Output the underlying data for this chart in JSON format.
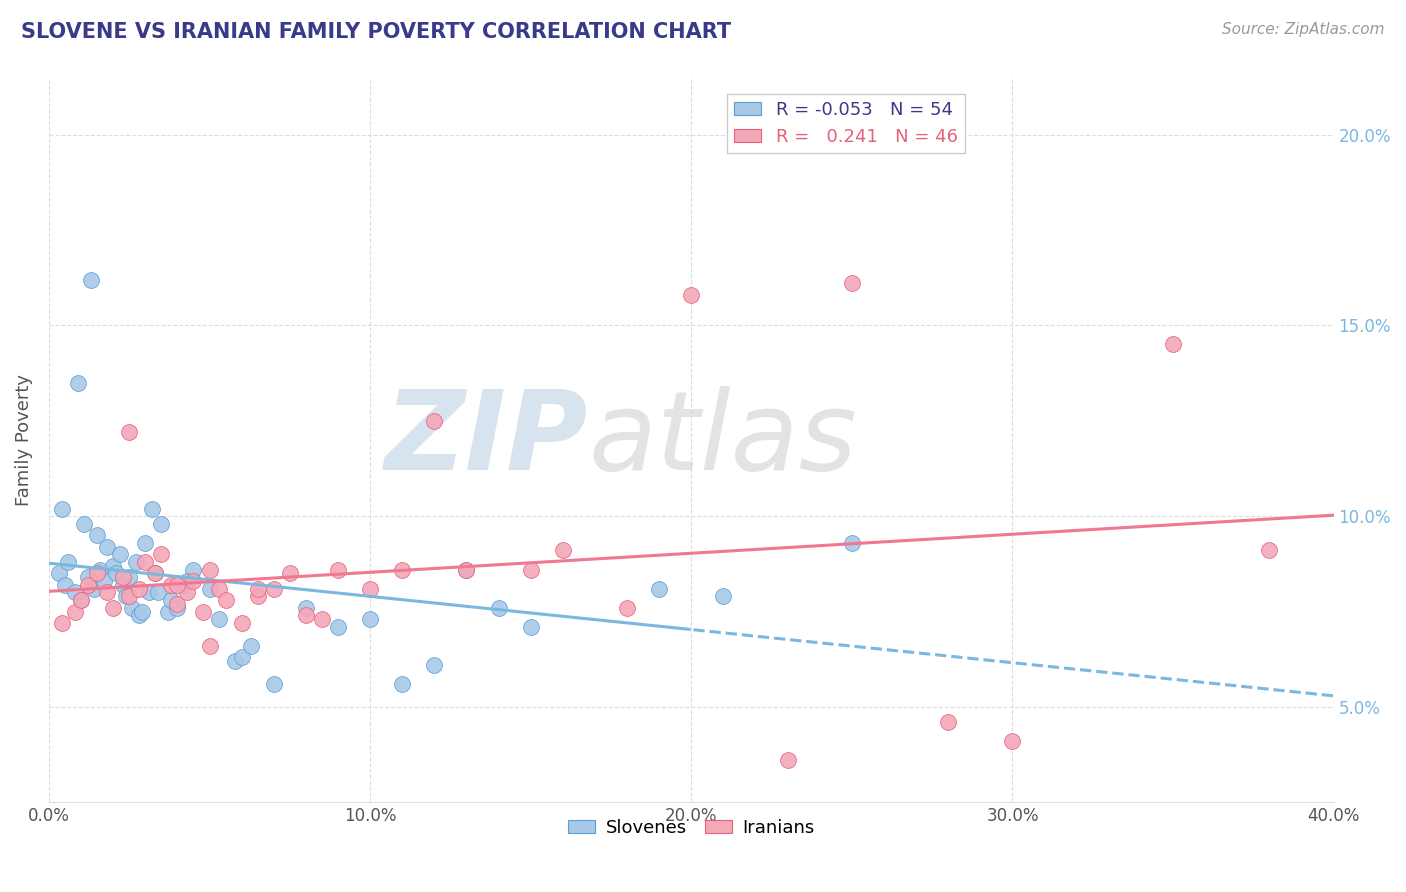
{
  "title": "SLOVENE VS IRANIAN FAMILY POVERTY CORRELATION CHART",
  "source_text": "Source: ZipAtlas.com",
  "ylabel": "Family Poverty",
  "xlim": [
    0.0,
    40.0
  ],
  "ylim": [
    2.5,
    21.5
  ],
  "xticks": [
    0.0,
    10.0,
    20.0,
    30.0,
    40.0
  ],
  "yticks": [
    5.0,
    10.0,
    15.0,
    20.0
  ],
  "slovene_color": "#a8c8e8",
  "iranian_color": "#f4a8b8",
  "slovene_edge_color": "#5a9fd4",
  "iranian_edge_color": "#e8607a",
  "slovene_line_color": "#7ab8e0",
  "iranian_line_color": "#f07890",
  "slovene_R": -0.053,
  "slovene_N": 54,
  "iranian_R": 0.241,
  "iranian_N": 46,
  "slovene_x": [
    0.3,
    0.5,
    0.6,
    0.8,
    1.0,
    1.1,
    1.2,
    1.4,
    1.5,
    1.6,
    1.7,
    1.8,
    2.0,
    2.1,
    2.2,
    2.3,
    2.4,
    2.5,
    2.6,
    2.7,
    2.8,
    3.0,
    3.1,
    3.2,
    3.3,
    3.5,
    3.7,
    4.0,
    4.2,
    4.5,
    5.0,
    5.3,
    5.8,
    6.0,
    6.3,
    7.0,
    8.0,
    9.0,
    10.0,
    11.0,
    12.0,
    13.0,
    14.0,
    15.0,
    0.4,
    0.9,
    1.3,
    2.9,
    3.4,
    3.8,
    4.3,
    21.0,
    25.0,
    19.0
  ],
  "slovene_y": [
    8.5,
    8.2,
    8.8,
    8.0,
    7.8,
    9.8,
    8.4,
    8.1,
    9.5,
    8.6,
    8.3,
    9.2,
    8.7,
    8.5,
    9.0,
    8.2,
    7.9,
    8.4,
    7.6,
    8.8,
    7.4,
    9.3,
    8.0,
    10.2,
    8.5,
    9.8,
    7.5,
    7.6,
    8.2,
    8.6,
    8.1,
    7.3,
    6.2,
    6.3,
    6.6,
    5.6,
    7.6,
    7.1,
    7.3,
    5.6,
    6.1,
    8.6,
    7.6,
    7.1,
    10.2,
    13.5,
    16.2,
    7.5,
    8.0,
    7.8,
    8.3,
    7.9,
    9.3,
    8.1
  ],
  "iranian_x": [
    0.4,
    0.8,
    1.0,
    1.2,
    1.5,
    1.8,
    2.0,
    2.3,
    2.5,
    2.8,
    3.0,
    3.3,
    3.5,
    3.8,
    4.0,
    4.3,
    4.5,
    4.8,
    5.0,
    5.3,
    5.5,
    6.0,
    6.5,
    7.0,
    7.5,
    8.0,
    8.5,
    9.0,
    10.0,
    11.0,
    12.0,
    13.0,
    15.0,
    16.0,
    18.0,
    20.0,
    23.0,
    25.0,
    28.0,
    30.0,
    35.0,
    38.0,
    2.5,
    4.0,
    5.0,
    6.5
  ],
  "iranian_y": [
    7.2,
    7.5,
    7.8,
    8.2,
    8.5,
    8.0,
    7.6,
    8.4,
    7.9,
    8.1,
    8.8,
    8.5,
    9.0,
    8.2,
    7.7,
    8.0,
    8.3,
    7.5,
    8.6,
    8.1,
    7.8,
    7.2,
    7.9,
    8.1,
    8.5,
    7.4,
    7.3,
    8.6,
    8.1,
    8.6,
    12.5,
    8.6,
    8.6,
    9.1,
    7.6,
    15.8,
    3.6,
    16.1,
    4.6,
    4.1,
    14.5,
    9.1,
    12.2,
    8.2,
    6.6,
    8.1
  ],
  "watermark_zip": "ZIP",
  "watermark_atlas": "atlas",
  "background_color": "#ffffff",
  "grid_color": "#dddddd",
  "title_color": "#3a3a8a",
  "axis_label_color": "#555555",
  "tick_label_color": "#555555"
}
